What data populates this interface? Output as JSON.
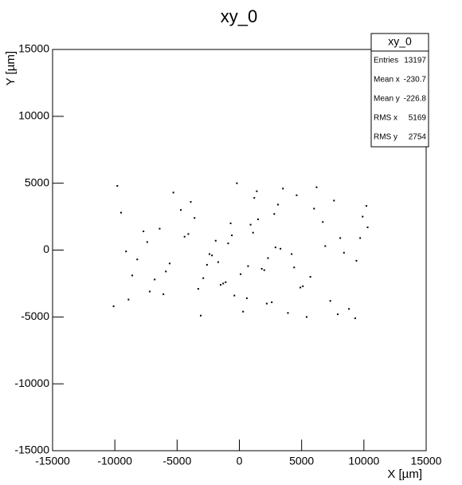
{
  "chart_data": {
    "type": "scatter",
    "title": "xy_0",
    "x_label": "X [µm]",
    "y_label": "Y [µm]",
    "xlim": [
      -15000,
      15000
    ],
    "ylim": [
      -15000,
      15000
    ],
    "xticks": [
      -15000,
      -10000,
      -5000,
      0,
      5000,
      10000,
      15000
    ],
    "yticks": [
      -15000,
      -10000,
      -5000,
      0,
      5000,
      10000,
      15000
    ],
    "color": "#000000",
    "x": [
      -9800,
      -7200,
      -4100,
      -1500,
      1200,
      3900,
      6700,
      9400,
      -8600,
      -5300,
      -2200,
      600,
      2800,
      5400,
      8100,
      10200,
      -10100,
      -6400,
      -3300,
      -900,
      1800,
      4600,
      7300,
      9900,
      -9100,
      -6800,
      -3900,
      -2600,
      -400,
      900,
      2300,
      3500,
      5100,
      6900,
      8800,
      -7700,
      -5900,
      -4700,
      -3100,
      -1900,
      -1100,
      -200,
      700,
      1500,
      2600,
      3300,
      4200,
      5700,
      7600,
      9300,
      -9500,
      -8200,
      -6100,
      -4400,
      -2900,
      -1700,
      -700,
      300,
      1100,
      2000,
      3100,
      4900,
      6200,
      8400,
      10300,
      -8900,
      -7400,
      -5600,
      -3600,
      -2400,
      -1300,
      -600,
      100,
      1400,
      2200,
      2900,
      4400,
      6000,
      7900,
      9700
    ],
    "y": [
      4800,
      -3100,
      1200,
      -2600,
      3900,
      -4700,
      2100,
      -800,
      -1900,
      4300,
      -400,
      -3600,
      2700,
      -5000,
      900,
      3300,
      -4200,
      1600,
      -2900,
      500,
      -1400,
      4100,
      -3800,
      2500,
      -100,
      -2200,
      3600,
      -1100,
      -3400,
      1900,
      -600,
      4600,
      -2700,
      300,
      -4400,
      1400,
      -1600,
      3000,
      -4900,
      700,
      -2400,
      5000,
      -1200,
      2300,
      -3900,
      100,
      -300,
      -2000,
      3700,
      -5100,
      2800,
      -700,
      -3300,
      1000,
      -2100,
      -900,
      2000,
      -4600,
      1300,
      -1500,
      3400,
      -2800,
      4700,
      -200,
      1700,
      -3700,
      600,
      -1000,
      2400,
      -300,
      -2500,
      1100,
      -1800,
      4400,
      -4000,
      200,
      -1300,
      3100,
      -4800,
      900
    ],
    "stats": {
      "title": "xy_0",
      "rows": [
        {
          "label": "Entries",
          "value": 13197
        },
        {
          "label": "Mean x",
          "value": -230.7
        },
        {
          "label": "Mean y",
          "value": -226.8
        },
        {
          "label": "RMS x",
          "value": 5169
        },
        {
          "label": "RMS y",
          "value": 2754
        }
      ]
    }
  }
}
